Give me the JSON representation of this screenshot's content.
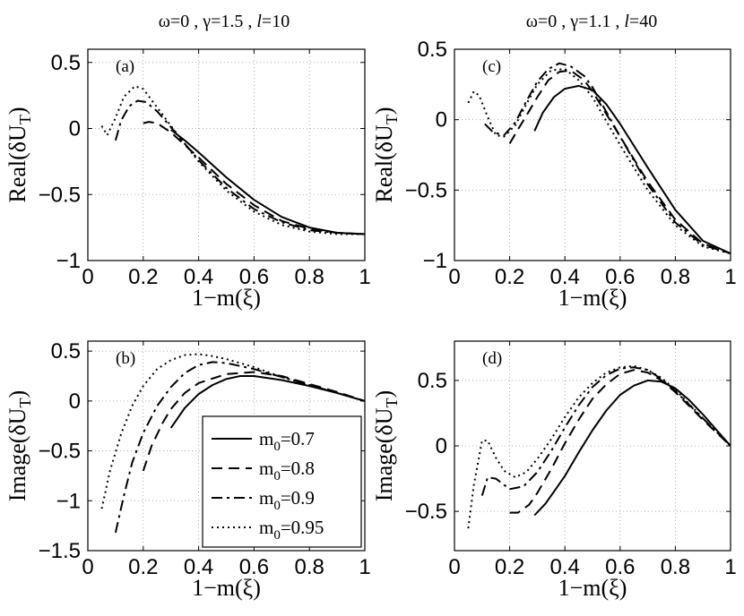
{
  "column_titles": [
    {
      "prefix": "ω=0 , γ=1.5 , ",
      "l_symbol": "l",
      "l_value": "=10"
    },
    {
      "prefix": "ω=0 , γ=1.1 , ",
      "l_symbol": "l",
      "l_value": "=40"
    }
  ],
  "legend": {
    "panel": "b",
    "entries": [
      {
        "base": "m",
        "sub": "0",
        "value": "=0.7",
        "style": "solid"
      },
      {
        "base": "m",
        "sub": "0",
        "value": "=0.8",
        "style": "dashed"
      },
      {
        "base": "m",
        "sub": "0",
        "value": "=0.9",
        "style": "dashdot"
      },
      {
        "base": "m",
        "sub": "0",
        "value": "=0.95",
        "style": "dotted"
      }
    ]
  },
  "chart_data": [
    {
      "id": "a",
      "tag": "(a)",
      "type": "line",
      "xlabel": "1−m(ξ)",
      "ylabel_prefix": "Real(δU",
      "ylabel_sub": "T",
      "ylabel_suffix": ")",
      "xlim": [
        0,
        1
      ],
      "ylim": [
        -1,
        0.6
      ],
      "xticks": [
        0,
        0.2,
        0.4,
        0.6,
        0.8,
        1
      ],
      "xtick_labels": [
        "0",
        "0.2",
        "0.4",
        "0.6",
        "0.8",
        "1"
      ],
      "yticks": [
        -1,
        -0.5,
        0,
        0.5
      ],
      "ytick_labels": [
        "−1",
        "−0.5",
        "0",
        "0.5"
      ],
      "grid": true,
      "series": [
        {
          "style": "solid",
          "x": [
            0.3,
            0.35,
            0.4,
            0.5,
            0.6,
            0.7,
            0.8,
            0.9,
            1.0
          ],
          "y": [
            -0.01,
            -0.09,
            -0.18,
            -0.37,
            -0.54,
            -0.67,
            -0.75,
            -0.79,
            -0.8
          ]
        },
        {
          "style": "dashed",
          "x": [
            0.2,
            0.22,
            0.25,
            0.3,
            0.4,
            0.5,
            0.6,
            0.7,
            0.8,
            0.9,
            1.0
          ],
          "y": [
            0.04,
            0.05,
            0.04,
            -0.03,
            -0.22,
            -0.42,
            -0.58,
            -0.7,
            -0.76,
            -0.79,
            -0.8
          ]
        },
        {
          "style": "dashdot",
          "x": [
            0.1,
            0.12,
            0.15,
            0.18,
            0.21,
            0.25,
            0.3,
            0.4,
            0.5,
            0.6,
            0.7,
            0.8,
            0.9,
            1.0
          ],
          "y": [
            -0.09,
            0.06,
            0.17,
            0.21,
            0.2,
            0.13,
            0.01,
            -0.24,
            -0.45,
            -0.61,
            -0.71,
            -0.77,
            -0.79,
            -0.8
          ]
        },
        {
          "style": "dotted",
          "x": [
            0.05,
            0.07,
            0.1,
            0.13,
            0.17,
            0.2,
            0.25,
            0.3,
            0.4,
            0.5,
            0.6,
            0.7,
            0.8,
            0.9,
            1.0
          ],
          "y": [
            0.02,
            -0.05,
            0.08,
            0.24,
            0.32,
            0.3,
            0.16,
            0.02,
            -0.25,
            -0.47,
            -0.63,
            -0.73,
            -0.78,
            -0.8,
            -0.8
          ]
        }
      ]
    },
    {
      "id": "b",
      "tag": "(b)",
      "type": "line",
      "xlabel": "1−m(ξ)",
      "ylabel_prefix": "Image(δU",
      "ylabel_sub": "T",
      "ylabel_suffix": ")",
      "xlim": [
        0,
        1
      ],
      "ylim": [
        -1.5,
        0.6
      ],
      "xticks": [
        0,
        0.2,
        0.4,
        0.6,
        0.8,
        1
      ],
      "xtick_labels": [
        "0",
        "0.2",
        "0.4",
        "0.6",
        "0.8",
        "1"
      ],
      "yticks": [
        -1.5,
        -1,
        -0.5,
        0,
        0.5
      ],
      "ytick_labels": [
        "−1.5",
        "−1",
        "−0.5",
        "0",
        "0.5"
      ],
      "grid": true,
      "series": [
        {
          "style": "solid",
          "x": [
            0.3,
            0.35,
            0.4,
            0.45,
            0.5,
            0.55,
            0.6,
            0.7,
            0.8,
            0.9,
            1.0
          ],
          "y": [
            -0.27,
            -0.07,
            0.07,
            0.16,
            0.22,
            0.25,
            0.25,
            0.21,
            0.15,
            0.08,
            0.0
          ]
        },
        {
          "style": "dashed",
          "x": [
            0.2,
            0.23,
            0.27,
            0.3,
            0.35,
            0.4,
            0.5,
            0.6,
            0.7,
            0.8,
            0.9,
            1.0
          ],
          "y": [
            -0.7,
            -0.45,
            -0.22,
            -0.08,
            0.08,
            0.18,
            0.27,
            0.29,
            0.25,
            0.17,
            0.09,
            0.0
          ]
        },
        {
          "style": "dashdot",
          "x": [
            0.1,
            0.13,
            0.16,
            0.2,
            0.25,
            0.3,
            0.35,
            0.4,
            0.45,
            0.5,
            0.6,
            0.7,
            0.8,
            0.9,
            1.0
          ],
          "y": [
            -1.32,
            -0.95,
            -0.62,
            -0.32,
            -0.05,
            0.14,
            0.28,
            0.36,
            0.39,
            0.38,
            0.32,
            0.24,
            0.16,
            0.08,
            0.0
          ]
        },
        {
          "style": "dotted",
          "x": [
            0.05,
            0.08,
            0.12,
            0.16,
            0.2,
            0.25,
            0.3,
            0.35,
            0.4,
            0.45,
            0.5,
            0.6,
            0.7,
            0.8,
            0.9,
            1.0
          ],
          "y": [
            -1.08,
            -0.7,
            -0.33,
            -0.05,
            0.15,
            0.32,
            0.41,
            0.46,
            0.47,
            0.45,
            0.42,
            0.34,
            0.24,
            0.16,
            0.08,
            0.0
          ]
        }
      ]
    },
    {
      "id": "c",
      "tag": "(c)",
      "type": "line",
      "xlabel": "1−m(ξ)",
      "ylabel_prefix": "Real(δU",
      "ylabel_sub": "T",
      "ylabel_suffix": ")",
      "xlim": [
        0,
        1
      ],
      "ylim": [
        -1,
        0.5
      ],
      "xticks": [
        0,
        0.2,
        0.4,
        0.6,
        0.8,
        1
      ],
      "xtick_labels": [
        "0",
        "0.2",
        "0.4",
        "0.6",
        "0.8",
        "1"
      ],
      "yticks": [
        -1,
        -0.5,
        0,
        0.5
      ],
      "ytick_labels": [
        "−1",
        "−0.5",
        "0",
        "0.5"
      ],
      "grid": true,
      "series": [
        {
          "style": "solid",
          "x": [
            0.29,
            0.32,
            0.36,
            0.4,
            0.45,
            0.5,
            0.55,
            0.6,
            0.7,
            0.8,
            0.9,
            1.0
          ],
          "y": [
            -0.08,
            0.05,
            0.16,
            0.22,
            0.24,
            0.21,
            0.11,
            -0.03,
            -0.34,
            -0.64,
            -0.86,
            -0.95
          ]
        },
        {
          "style": "dashed",
          "x": [
            0.2,
            0.23,
            0.27,
            0.3,
            0.34,
            0.38,
            0.42,
            0.47,
            0.5,
            0.6,
            0.7,
            0.8,
            0.9,
            1.0
          ],
          "y": [
            -0.17,
            -0.07,
            0.06,
            0.16,
            0.28,
            0.34,
            0.35,
            0.28,
            0.2,
            -0.12,
            -0.44,
            -0.71,
            -0.88,
            -0.95
          ]
        },
        {
          "style": "dashdot",
          "x": [
            0.11,
            0.14,
            0.18,
            0.22,
            0.26,
            0.3,
            0.34,
            0.38,
            0.42,
            0.47,
            0.5,
            0.6,
            0.7,
            0.8,
            0.9,
            1.0
          ],
          "y": [
            -0.03,
            -0.09,
            -0.11,
            -0.02,
            0.13,
            0.27,
            0.36,
            0.4,
            0.38,
            0.31,
            0.23,
            -0.12,
            -0.46,
            -0.73,
            -0.89,
            -0.95
          ]
        },
        {
          "style": "dotted",
          "x": [
            0.05,
            0.07,
            0.09,
            0.12,
            0.15,
            0.18,
            0.22,
            0.26,
            0.3,
            0.35,
            0.4,
            0.45,
            0.5,
            0.6,
            0.7,
            0.8,
            0.9,
            1.0
          ],
          "y": [
            0.12,
            0.2,
            0.17,
            0.02,
            -0.11,
            -0.12,
            -0.04,
            0.11,
            0.25,
            0.35,
            0.36,
            0.28,
            0.16,
            -0.18,
            -0.5,
            -0.75,
            -0.9,
            -0.95
          ]
        }
      ]
    },
    {
      "id": "d",
      "tag": "(d)",
      "type": "line",
      "xlabel": "1−m(ξ)",
      "ylabel_prefix": "Image(δU",
      "ylabel_sub": "T",
      "ylabel_suffix": ")",
      "xlim": [
        0,
        1
      ],
      "ylim": [
        -0.8,
        0.8
      ],
      "xticks": [
        0,
        0.2,
        0.4,
        0.6,
        0.8,
        1
      ],
      "xtick_labels": [
        "0",
        "0.2",
        "0.4",
        "0.6",
        "0.8",
        "1"
      ],
      "yticks": [
        -0.5,
        0,
        0.5
      ],
      "ytick_labels": [
        "−0.5",
        "0",
        "0.5"
      ],
      "grid": true,
      "series": [
        {
          "style": "solid",
          "x": [
            0.29,
            0.33,
            0.37,
            0.4,
            0.45,
            0.5,
            0.55,
            0.6,
            0.65,
            0.7,
            0.75,
            0.8,
            0.85,
            0.9,
            0.95,
            1.0
          ],
          "y": [
            -0.53,
            -0.44,
            -0.32,
            -0.23,
            -0.05,
            0.12,
            0.27,
            0.39,
            0.46,
            0.5,
            0.49,
            0.44,
            0.35,
            0.24,
            0.12,
            0.0
          ]
        },
        {
          "style": "dashed",
          "x": [
            0.2,
            0.23,
            0.27,
            0.3,
            0.35,
            0.4,
            0.45,
            0.5,
            0.55,
            0.6,
            0.65,
            0.7,
            0.75,
            0.8,
            0.9,
            1.0
          ],
          "y": [
            -0.51,
            -0.51,
            -0.45,
            -0.36,
            -0.18,
            0.02,
            0.2,
            0.36,
            0.47,
            0.55,
            0.58,
            0.56,
            0.5,
            0.41,
            0.2,
            0.0
          ]
        },
        {
          "style": "dashdot",
          "x": [
            0.1,
            0.12,
            0.15,
            0.2,
            0.25,
            0.3,
            0.35,
            0.4,
            0.45,
            0.5,
            0.55,
            0.6,
            0.65,
            0.7,
            0.75,
            0.8,
            0.9,
            1.0
          ],
          "y": [
            -0.38,
            -0.24,
            -0.25,
            -0.33,
            -0.31,
            -0.2,
            -0.04,
            0.14,
            0.31,
            0.45,
            0.54,
            0.59,
            0.6,
            0.58,
            0.51,
            0.42,
            0.21,
            0.0
          ]
        },
        {
          "style": "dotted",
          "x": [
            0.05,
            0.07,
            0.1,
            0.12,
            0.15,
            0.18,
            0.22,
            0.26,
            0.3,
            0.35,
            0.4,
            0.45,
            0.5,
            0.55,
            0.6,
            0.65,
            0.7,
            0.75,
            0.8,
            0.9,
            1.0
          ],
          "y": [
            -0.63,
            -0.3,
            0.04,
            0.04,
            -0.09,
            -0.19,
            -0.24,
            -0.2,
            -0.1,
            0.05,
            0.22,
            0.37,
            0.48,
            0.56,
            0.6,
            0.61,
            0.58,
            0.52,
            0.43,
            0.21,
            0.0
          ]
        }
      ]
    }
  ]
}
